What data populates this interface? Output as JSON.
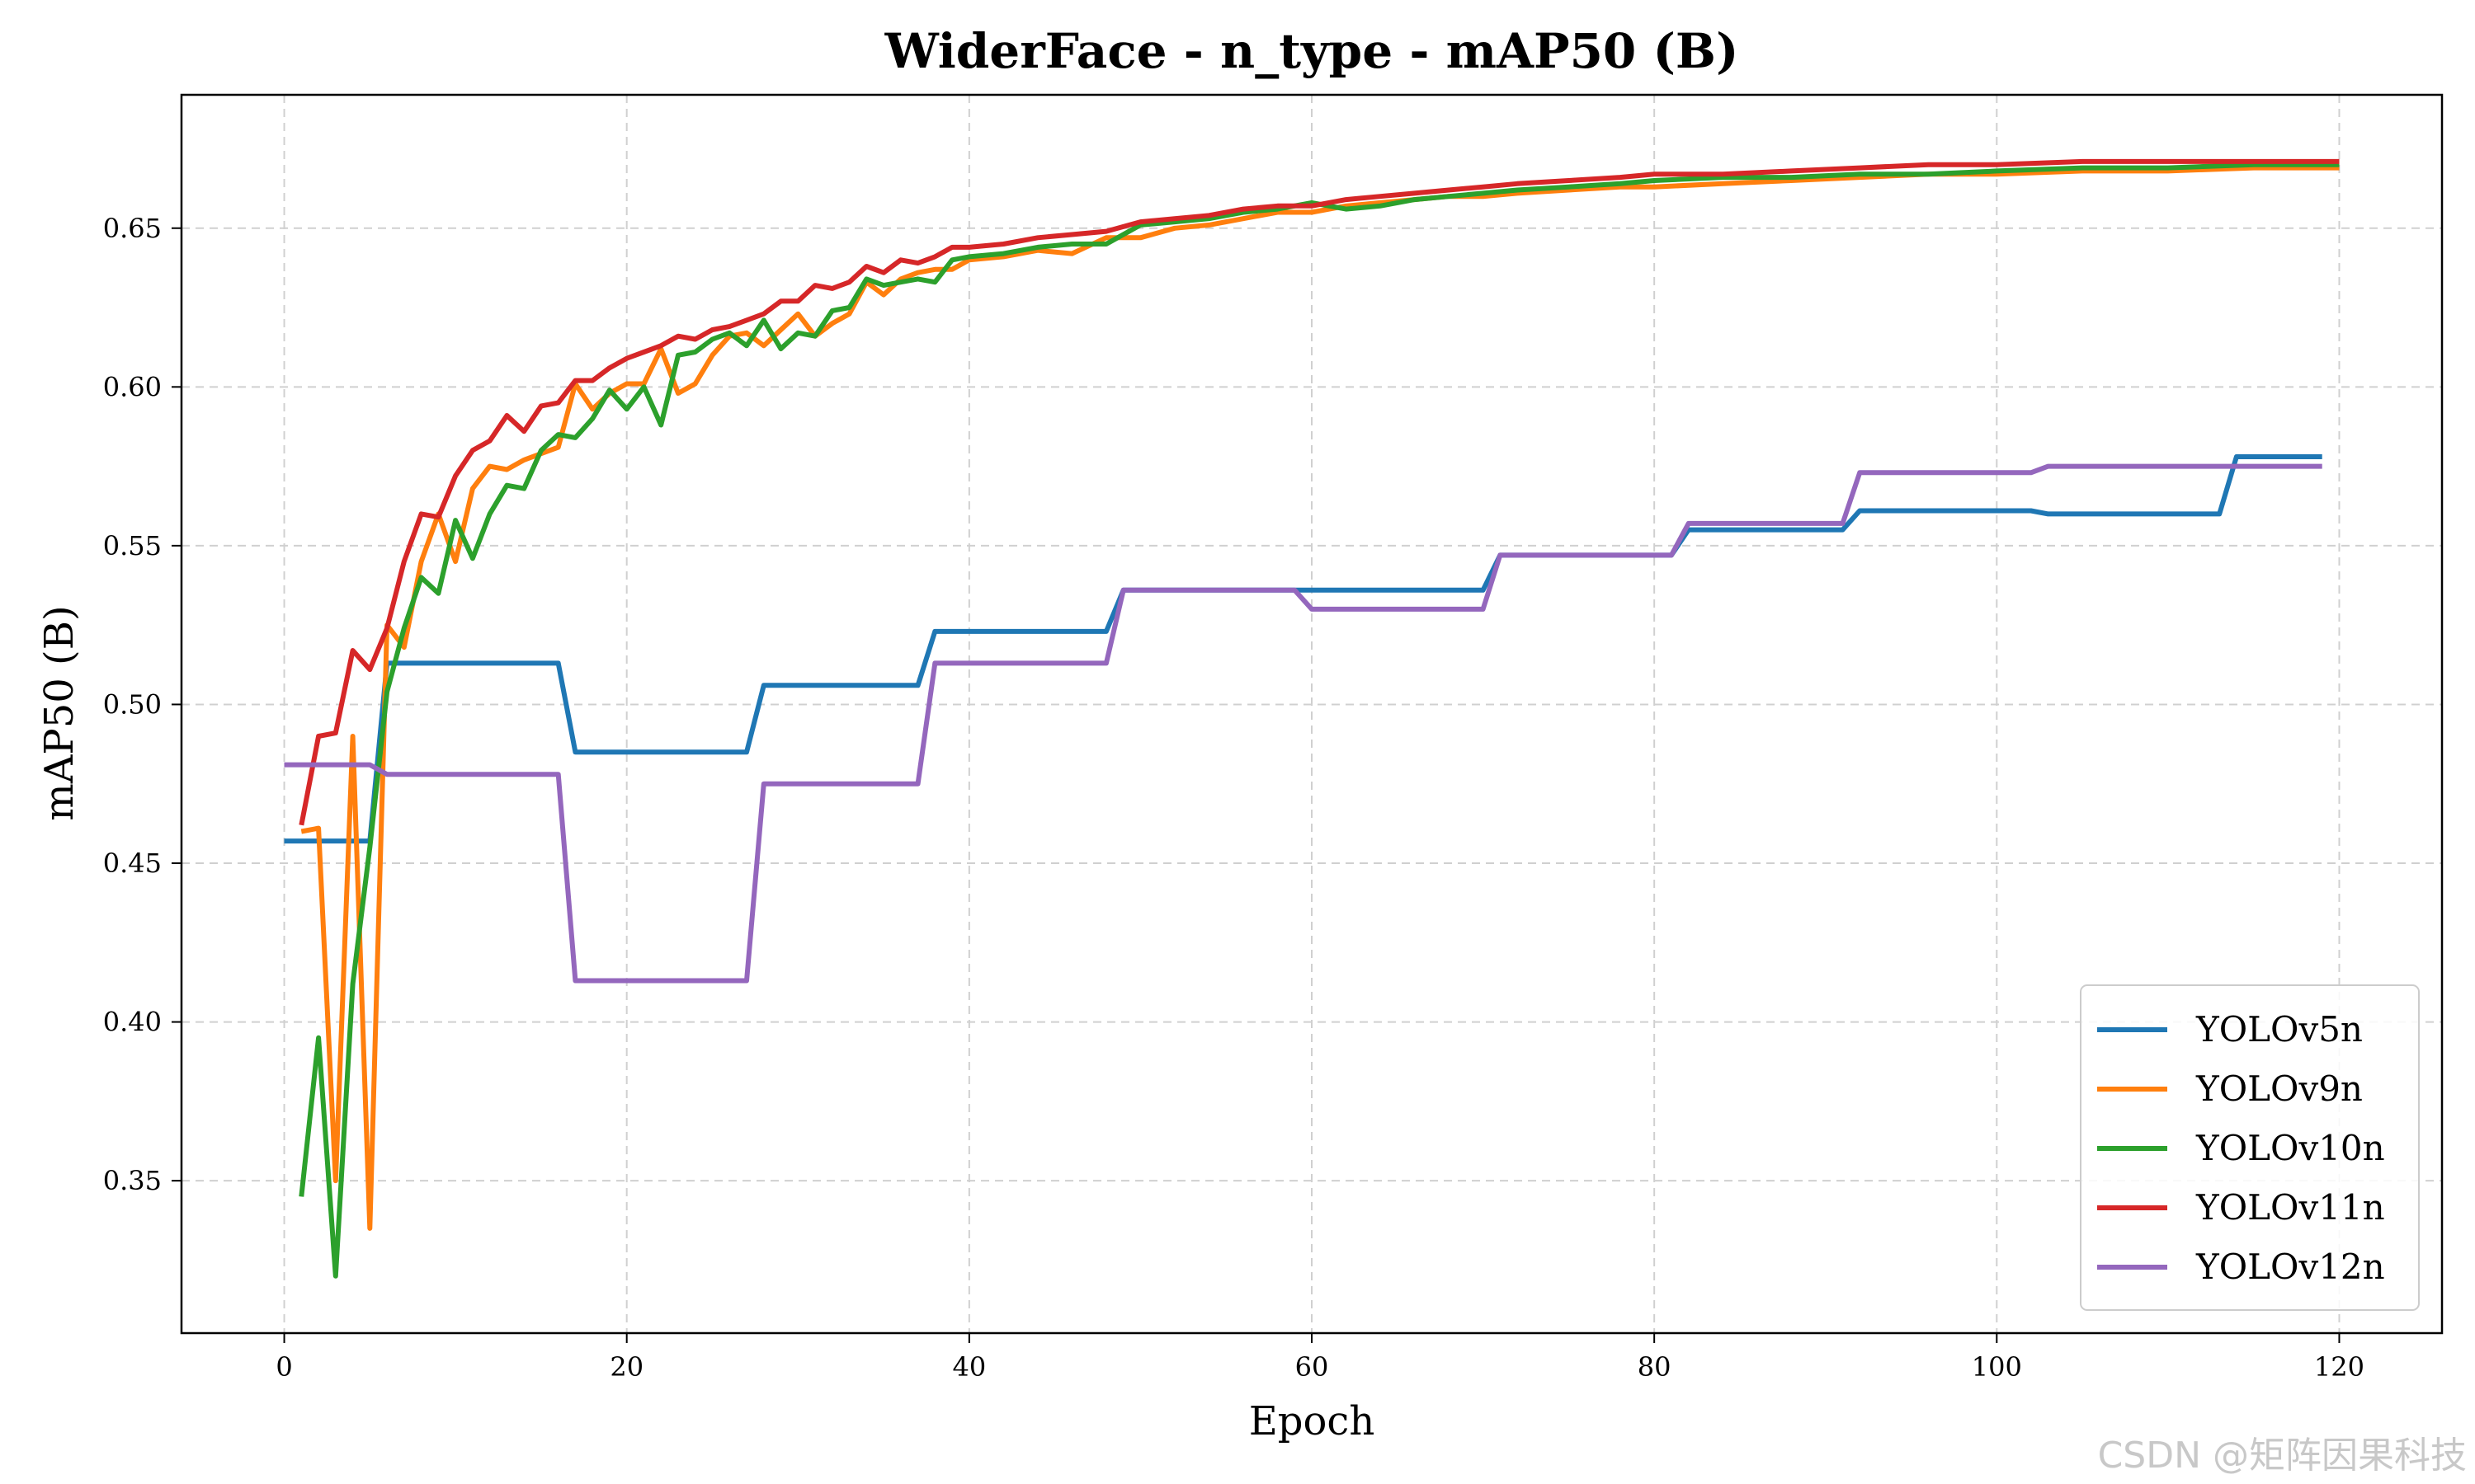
{
  "chart_data": {
    "type": "line",
    "title": "WiderFace - n_type - mAP50 (B)",
    "xlabel": "Epoch",
    "ylabel": "mAP50 (B)",
    "xlim": [
      -6,
      126
    ],
    "ylim": [
      0.302,
      0.692
    ],
    "xticks": [
      0,
      20,
      40,
      60,
      80,
      100,
      120
    ],
    "yticks": [
      0.35,
      0.4,
      0.45,
      0.5,
      0.55,
      0.6,
      0.65
    ],
    "grid": true,
    "legend_position": "bottom-right",
    "series": [
      {
        "name": "YOLOv5n",
        "color": "#1f77b4",
        "points": [
          [
            0,
            0.457
          ],
          [
            5,
            0.457
          ],
          [
            5,
            0.457
          ],
          [
            6,
            0.513
          ],
          [
            16,
            0.513
          ],
          [
            17,
            0.485
          ],
          [
            27,
            0.485
          ],
          [
            28,
            0.506
          ],
          [
            37,
            0.506
          ],
          [
            38,
            0.523
          ],
          [
            48,
            0.523
          ],
          [
            49,
            0.536
          ],
          [
            70,
            0.536
          ],
          [
            71,
            0.547
          ],
          [
            81,
            0.547
          ],
          [
            82,
            0.555
          ],
          [
            91,
            0.555
          ],
          [
            92,
            0.561
          ],
          [
            102,
            0.561
          ],
          [
            103,
            0.56
          ],
          [
            113,
            0.56
          ],
          [
            114,
            0.578
          ],
          [
            119,
            0.578
          ]
        ]
      },
      {
        "name": "YOLOv9n",
        "color": "#ff7f0e",
        "points": [
          [
            1,
            0.46
          ],
          [
            2,
            0.461
          ],
          [
            3,
            0.35
          ],
          [
            4,
            0.49
          ],
          [
            5,
            0.335
          ],
          [
            6,
            0.525
          ],
          [
            7,
            0.518
          ],
          [
            8,
            0.545
          ],
          [
            9,
            0.56
          ],
          [
            10,
            0.545
          ],
          [
            11,
            0.568
          ],
          [
            12,
            0.575
          ],
          [
            13,
            0.574
          ],
          [
            14,
            0.577
          ],
          [
            15,
            0.579
          ],
          [
            16,
            0.581
          ],
          [
            17,
            0.601
          ],
          [
            18,
            0.593
          ],
          [
            19,
            0.598
          ],
          [
            20,
            0.601
          ],
          [
            21,
            0.601
          ],
          [
            22,
            0.612
          ],
          [
            23,
            0.598
          ],
          [
            24,
            0.601
          ],
          [
            25,
            0.61
          ],
          [
            26,
            0.616
          ],
          [
            27,
            0.617
          ],
          [
            28,
            0.613
          ],
          [
            29,
            0.618
          ],
          [
            30,
            0.623
          ],
          [
            31,
            0.616
          ],
          [
            32,
            0.62
          ],
          [
            33,
            0.623
          ],
          [
            34,
            0.633
          ],
          [
            35,
            0.629
          ],
          [
            36,
            0.634
          ],
          [
            37,
            0.636
          ],
          [
            38,
            0.637
          ],
          [
            39,
            0.637
          ],
          [
            40,
            0.64
          ],
          [
            42,
            0.641
          ],
          [
            44,
            0.643
          ],
          [
            46,
            0.642
          ],
          [
            48,
            0.647
          ],
          [
            50,
            0.647
          ],
          [
            52,
            0.65
          ],
          [
            54,
            0.651
          ],
          [
            56,
            0.653
          ],
          [
            58,
            0.655
          ],
          [
            60,
            0.655
          ],
          [
            62,
            0.657
          ],
          [
            64,
            0.658
          ],
          [
            66,
            0.659
          ],
          [
            68,
            0.66
          ],
          [
            70,
            0.66
          ],
          [
            72,
            0.661
          ],
          [
            75,
            0.662
          ],
          [
            78,
            0.663
          ],
          [
            80,
            0.663
          ],
          [
            84,
            0.664
          ],
          [
            88,
            0.665
          ],
          [
            92,
            0.666
          ],
          [
            96,
            0.667
          ],
          [
            100,
            0.667
          ],
          [
            105,
            0.668
          ],
          [
            110,
            0.668
          ],
          [
            115,
            0.669
          ],
          [
            120,
            0.669
          ]
        ]
      },
      {
        "name": "YOLOv10n",
        "color": "#2ca02c",
        "points": [
          [
            1,
            0.345
          ],
          [
            2,
            0.395
          ],
          [
            3,
            0.32
          ],
          [
            4,
            0.412
          ],
          [
            5,
            0.455
          ],
          [
            6,
            0.504
          ],
          [
            7,
            0.524
          ],
          [
            8,
            0.54
          ],
          [
            9,
            0.535
          ],
          [
            10,
            0.558
          ],
          [
            11,
            0.546
          ],
          [
            12,
            0.56
          ],
          [
            13,
            0.569
          ],
          [
            14,
            0.568
          ],
          [
            15,
            0.58
          ],
          [
            16,
            0.585
          ],
          [
            17,
            0.584
          ],
          [
            18,
            0.59
          ],
          [
            19,
            0.599
          ],
          [
            20,
            0.593
          ],
          [
            21,
            0.6
          ],
          [
            22,
            0.588
          ],
          [
            23,
            0.61
          ],
          [
            24,
            0.611
          ],
          [
            25,
            0.615
          ],
          [
            26,
            0.617
          ],
          [
            27,
            0.613
          ],
          [
            28,
            0.621
          ],
          [
            29,
            0.612
          ],
          [
            30,
            0.617
          ],
          [
            31,
            0.616
          ],
          [
            32,
            0.624
          ],
          [
            33,
            0.625
          ],
          [
            34,
            0.634
          ],
          [
            35,
            0.632
          ],
          [
            36,
            0.633
          ],
          [
            37,
            0.634
          ],
          [
            38,
            0.633
          ],
          [
            39,
            0.64
          ],
          [
            40,
            0.641
          ],
          [
            42,
            0.642
          ],
          [
            44,
            0.644
          ],
          [
            46,
            0.645
          ],
          [
            48,
            0.645
          ],
          [
            50,
            0.651
          ],
          [
            52,
            0.652
          ],
          [
            54,
            0.653
          ],
          [
            56,
            0.655
          ],
          [
            58,
            0.656
          ],
          [
            60,
            0.658
          ],
          [
            62,
            0.656
          ],
          [
            64,
            0.657
          ],
          [
            66,
            0.659
          ],
          [
            68,
            0.66
          ],
          [
            70,
            0.661
          ],
          [
            72,
            0.662
          ],
          [
            75,
            0.663
          ],
          [
            78,
            0.664
          ],
          [
            80,
            0.665
          ],
          [
            84,
            0.666
          ],
          [
            88,
            0.666
          ],
          [
            92,
            0.667
          ],
          [
            96,
            0.667
          ],
          [
            100,
            0.668
          ],
          [
            105,
            0.669
          ],
          [
            110,
            0.669
          ],
          [
            115,
            0.67
          ],
          [
            120,
            0.67
          ]
        ]
      },
      {
        "name": "YOLOv11n",
        "color": "#d62728",
        "points": [
          [
            1,
            0.462
          ],
          [
            2,
            0.49
          ],
          [
            3,
            0.491
          ],
          [
            4,
            0.517
          ],
          [
            5,
            0.511
          ],
          [
            6,
            0.524
          ],
          [
            7,
            0.545
          ],
          [
            8,
            0.56
          ],
          [
            9,
            0.559
          ],
          [
            10,
            0.572
          ],
          [
            11,
            0.58
          ],
          [
            12,
            0.583
          ],
          [
            13,
            0.591
          ],
          [
            14,
            0.586
          ],
          [
            15,
            0.594
          ],
          [
            16,
            0.595
          ],
          [
            17,
            0.602
          ],
          [
            18,
            0.602
          ],
          [
            19,
            0.606
          ],
          [
            20,
            0.609
          ],
          [
            21,
            0.611
          ],
          [
            22,
            0.613
          ],
          [
            23,
            0.616
          ],
          [
            24,
            0.615
          ],
          [
            25,
            0.618
          ],
          [
            26,
            0.619
          ],
          [
            27,
            0.621
          ],
          [
            28,
            0.623
          ],
          [
            29,
            0.627
          ],
          [
            30,
            0.627
          ],
          [
            31,
            0.632
          ],
          [
            32,
            0.631
          ],
          [
            33,
            0.633
          ],
          [
            34,
            0.638
          ],
          [
            35,
            0.636
          ],
          [
            36,
            0.64
          ],
          [
            37,
            0.639
          ],
          [
            38,
            0.641
          ],
          [
            39,
            0.644
          ],
          [
            40,
            0.644
          ],
          [
            42,
            0.645
          ],
          [
            44,
            0.647
          ],
          [
            46,
            0.648
          ],
          [
            48,
            0.649
          ],
          [
            50,
            0.652
          ],
          [
            52,
            0.653
          ],
          [
            54,
            0.654
          ],
          [
            56,
            0.656
          ],
          [
            58,
            0.657
          ],
          [
            60,
            0.657
          ],
          [
            62,
            0.659
          ],
          [
            64,
            0.66
          ],
          [
            66,
            0.661
          ],
          [
            68,
            0.662
          ],
          [
            70,
            0.663
          ],
          [
            72,
            0.664
          ],
          [
            75,
            0.665
          ],
          [
            78,
            0.666
          ],
          [
            80,
            0.667
          ],
          [
            84,
            0.667
          ],
          [
            88,
            0.668
          ],
          [
            92,
            0.669
          ],
          [
            96,
            0.67
          ],
          [
            100,
            0.67
          ],
          [
            105,
            0.671
          ],
          [
            110,
            0.671
          ],
          [
            115,
            0.671
          ],
          [
            120,
            0.671
          ]
        ]
      },
      {
        "name": "YOLOv12n",
        "color": "#9467bd",
        "points": [
          [
            0,
            0.481
          ],
          [
            5,
            0.481
          ],
          [
            6,
            0.478
          ],
          [
            16,
            0.478
          ],
          [
            17,
            0.413
          ],
          [
            27,
            0.413
          ],
          [
            28,
            0.475
          ],
          [
            37,
            0.475
          ],
          [
            38,
            0.513
          ],
          [
            48,
            0.513
          ],
          [
            49,
            0.536
          ],
          [
            59,
            0.536
          ],
          [
            60,
            0.53
          ],
          [
            70,
            0.53
          ],
          [
            71,
            0.547
          ],
          [
            81,
            0.547
          ],
          [
            82,
            0.557
          ],
          [
            91,
            0.557
          ],
          [
            92,
            0.573
          ],
          [
            102,
            0.573
          ],
          [
            103,
            0.575
          ],
          [
            119,
            0.575
          ]
        ]
      }
    ]
  },
  "watermark": "CSDN @矩阵因果科技"
}
